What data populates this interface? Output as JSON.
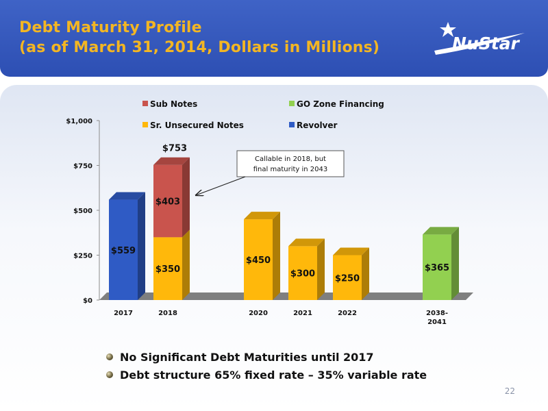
{
  "slide": {
    "title_line1": "Debt Maturity Profile",
    "title_line2": "(as of March 31, 2014, Dollars in Millions)",
    "logo_text": "NuStar",
    "page_number": "22",
    "bullets": [
      "No Significant Debt Maturities until 2017",
      "Debt structure 65% fixed rate – 35% variable rate"
    ]
  },
  "colors": {
    "header_bg": "#2d4fb3",
    "title": "#f3b623",
    "sub_notes": "#c9544d",
    "sr_unsecured_notes": "#ffb80b",
    "go_zone": "#92d050",
    "revolver": "#2f5bc5"
  },
  "chart_data": {
    "type": "bar",
    "stacked": true,
    "categories": [
      "2017",
      "2018",
      "2020",
      "2021",
      "2022",
      "2038-\n2041"
    ],
    "series": [
      {
        "name": "Revolver",
        "values": [
          559,
          0,
          0,
          0,
          0,
          0
        ],
        "color": "#2f5bc5"
      },
      {
        "name": "Sr. Unsecured Notes",
        "values": [
          0,
          350,
          450,
          300,
          250,
          0
        ],
        "color": "#ffb80b"
      },
      {
        "name": "Sub Notes",
        "values": [
          0,
          403,
          0,
          0,
          0,
          0
        ],
        "color": "#c9544d"
      },
      {
        "name": "GO Zone Financing",
        "values": [
          0,
          0,
          0,
          0,
          0,
          365
        ],
        "color": "#92d050"
      }
    ],
    "data_labels": [
      {
        "category": "2017",
        "series": "Revolver",
        "text": "$559"
      },
      {
        "category": "2018",
        "series": "Sr. Unsecured Notes",
        "text": "$350"
      },
      {
        "category": "2018",
        "series": "Sub Notes",
        "text": "$403"
      },
      {
        "category": "2020",
        "series": "Sr. Unsecured Notes",
        "text": "$450"
      },
      {
        "category": "2021",
        "series": "Sr. Unsecured Notes",
        "text": "$300"
      },
      {
        "category": "2022",
        "series": "Sr. Unsecured Notes",
        "text": "$250"
      },
      {
        "category": "2038-\n2041",
        "series": "GO Zone Financing",
        "text": "$365"
      }
    ],
    "totals": [
      {
        "category": "2018",
        "text": "$753"
      }
    ],
    "annotation": {
      "text_line1": "Callable in 2018, but",
      "text_line2": "final maturity in 2043",
      "points_to": "2018"
    },
    "y_ticks": [
      "$0",
      "$250",
      "$500",
      "$750",
      "$1,000"
    ],
    "ylim": [
      0,
      1000
    ],
    "legend": [
      {
        "label": "Sub Notes",
        "color": "#c9544d"
      },
      {
        "label": "GO Zone Financing",
        "color": "#92d050"
      },
      {
        "label": "Sr. Unsecured Notes",
        "color": "#ffb80b"
      },
      {
        "label": "Revolver",
        "color": "#2f5bc5"
      }
    ],
    "legend_position": "top",
    "grid": false
  }
}
